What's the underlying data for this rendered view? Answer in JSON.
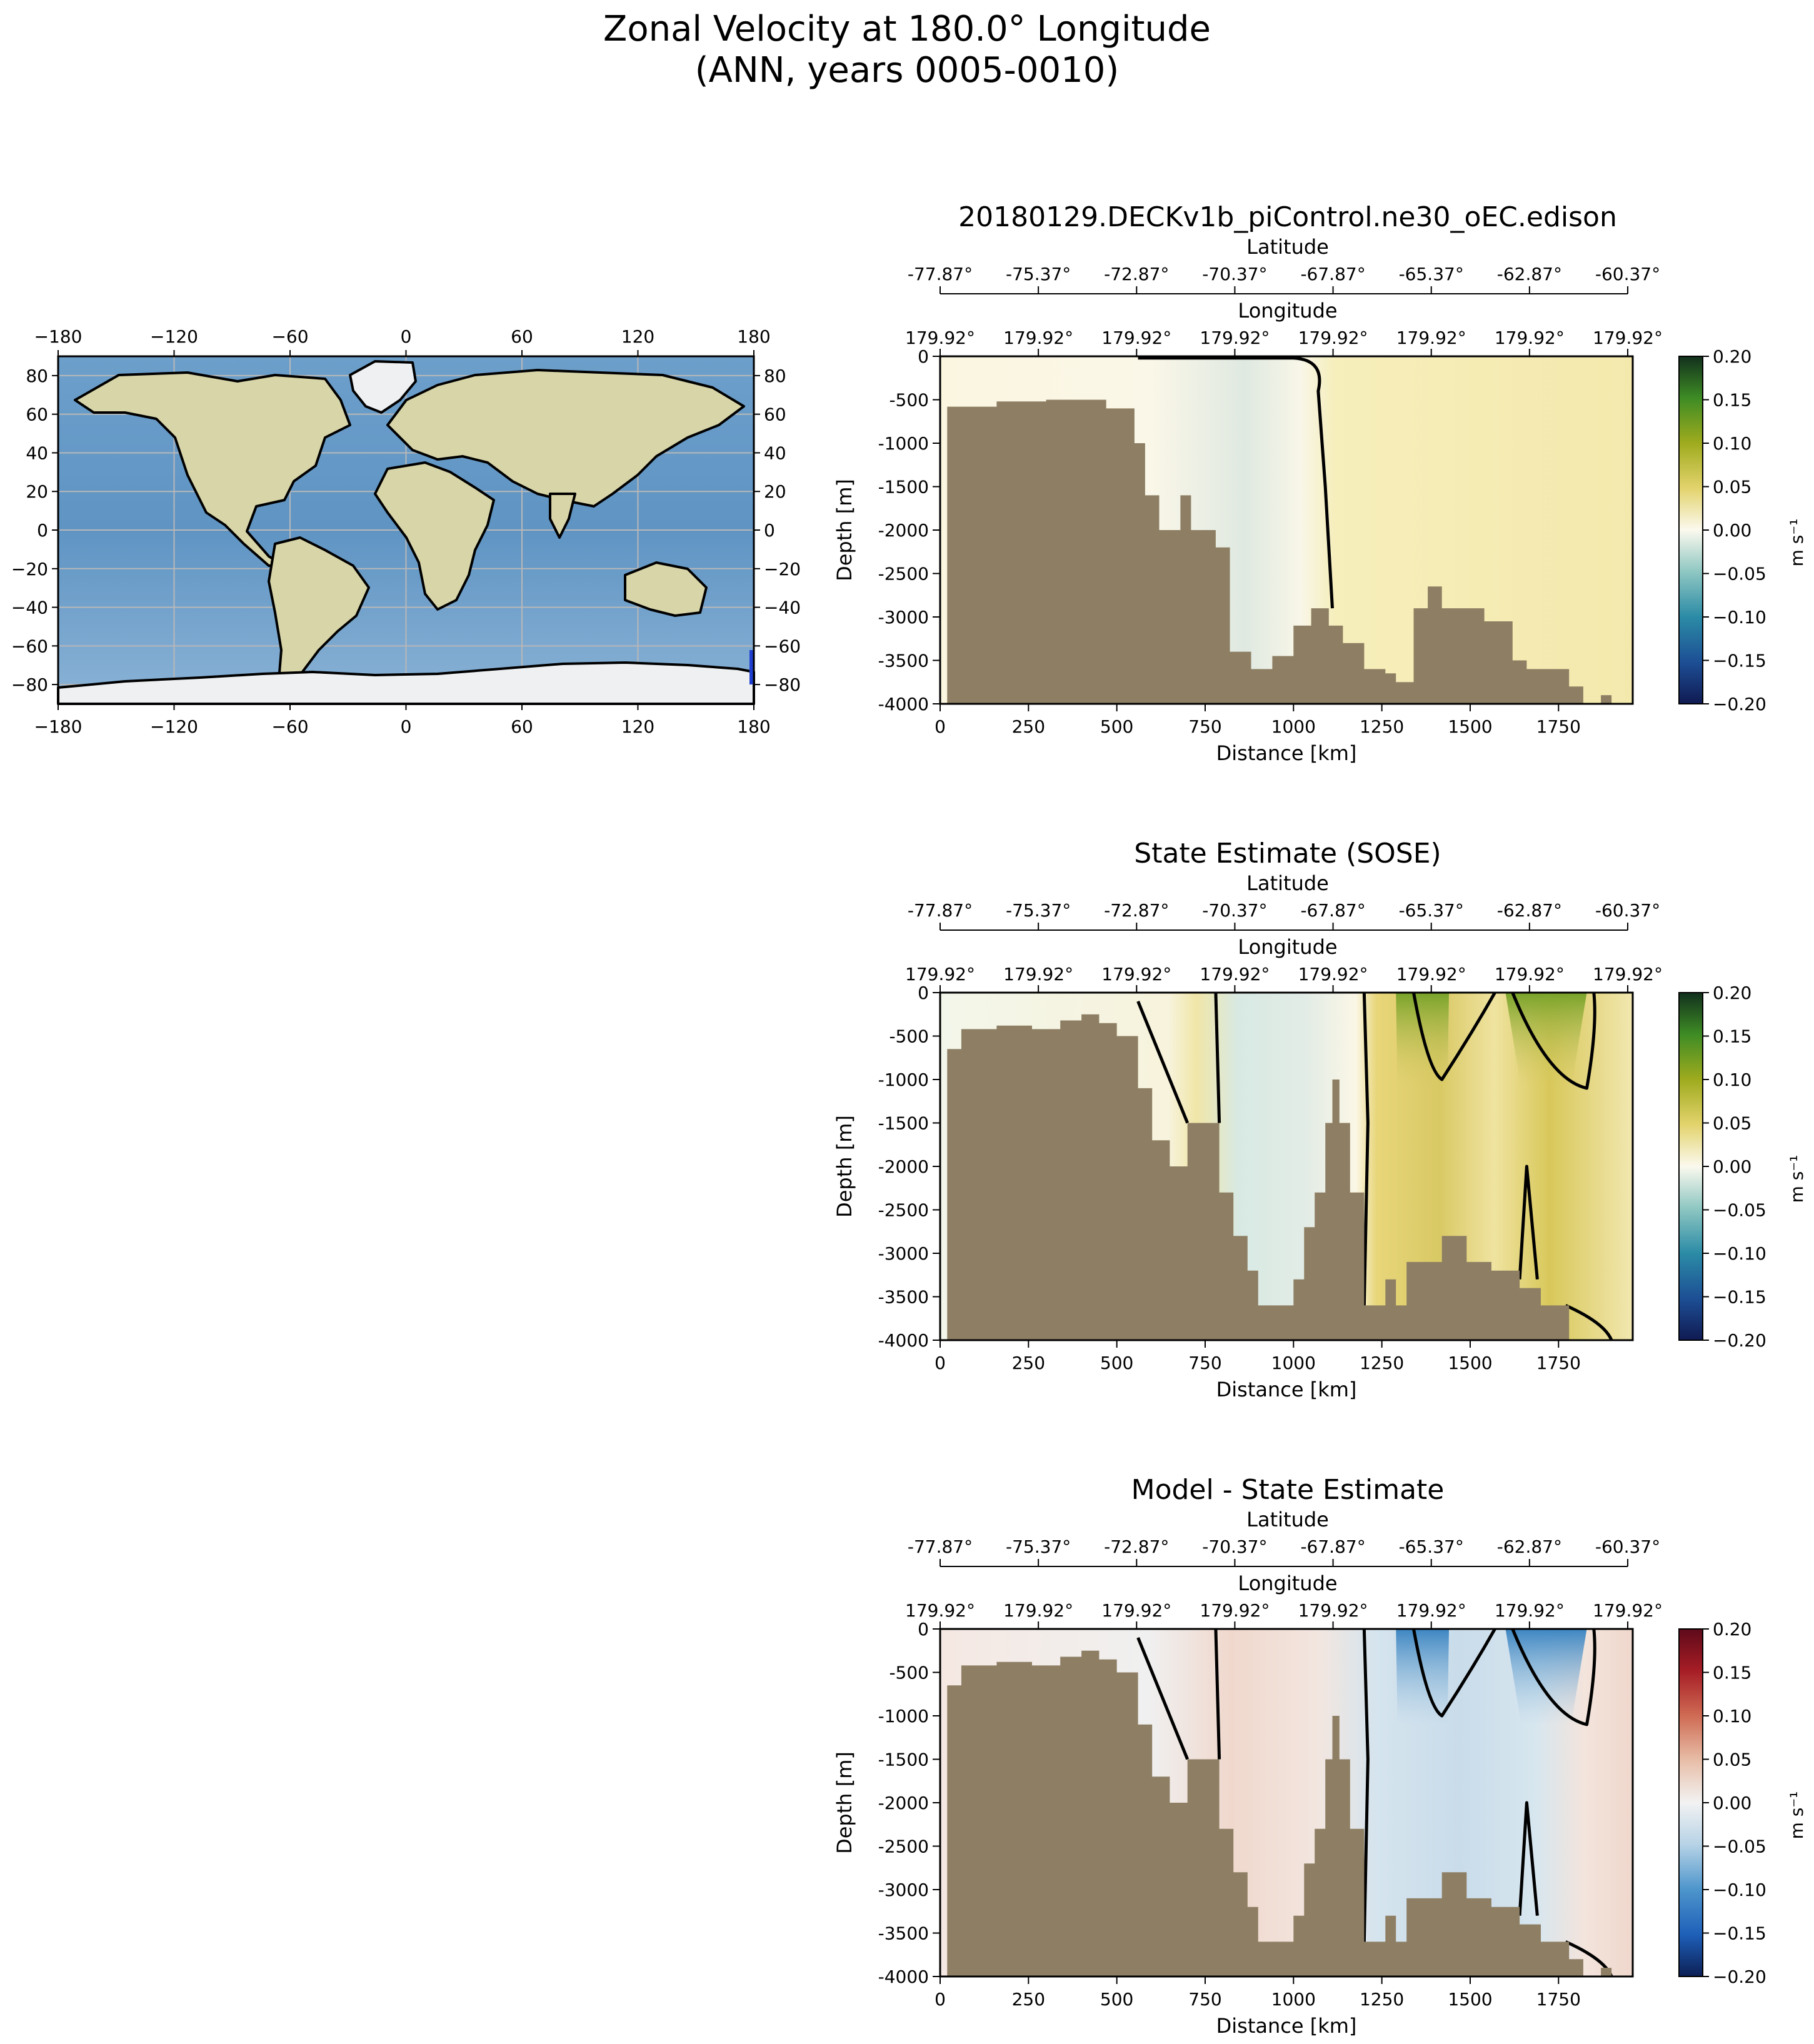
{
  "figure": {
    "title_line1": "Zonal Velocity at 180.0° Longitude",
    "title_line2": "(ANN, years 0005-0010)"
  },
  "map": {
    "x_ticks": [
      "−180",
      "−120",
      "−60",
      "0",
      "60",
      "120",
      "180"
    ],
    "y_ticks": [
      "80",
      "60",
      "40",
      "20",
      "0",
      "−20",
      "−40",
      "−60",
      "−80"
    ],
    "xlim": [
      -180,
      180
    ],
    "ylim": [
      -90,
      90
    ],
    "transect": {
      "longitude": 180,
      "lat_range": [
        -77.87,
        -60.37
      ],
      "color": "#1f3fd0"
    }
  },
  "chart_data": [
    {
      "type": "heatmap",
      "title": "20180129.DECKv1b_piControl.ne30_oEC.edison",
      "top_axis1_label": "Latitude",
      "top_axis1_ticks": [
        "-77.87°",
        "-75.37°",
        "-72.87°",
        "-70.37°",
        "-67.87°",
        "-65.37°",
        "-62.87°",
        "-60.37°"
      ],
      "top_axis2_label": "Longitude",
      "top_axis2_ticks": [
        "179.92°",
        "179.92°",
        "179.92°",
        "179.92°",
        "179.92°",
        "179.92°",
        "179.92°",
        "179.92°"
      ],
      "xlabel": "Distance [km]",
      "ylabel": "Depth [m]",
      "x_ticks": [
        "0",
        "250",
        "500",
        "750",
        "1000",
        "1250",
        "1500",
        "1750"
      ],
      "y_ticks": [
        "0",
        "-500",
        "-1000",
        "-1500",
        "-2000",
        "-2500",
        "-3000",
        "-3500",
        "-4000"
      ],
      "xlim": [
        0,
        1960
      ],
      "ylim": [
        -4000,
        0
      ],
      "colorbar_label": "m s⁻¹",
      "colorbar_ticks": [
        "0.20",
        "0.15",
        "0.10",
        "0.05",
        "0.00",
        "−0.05",
        "−0.10",
        "−0.15",
        "−0.20"
      ],
      "colorbar_range": [
        -0.2,
        0.2
      ],
      "colormap": "BrBG-like (green positive, blue negative)",
      "bathymetry": [
        [
          0,
          -4000
        ],
        [
          20,
          -4000
        ],
        [
          20,
          -580
        ],
        [
          160,
          -580
        ],
        [
          160,
          -520
        ],
        [
          300,
          -520
        ],
        [
          300,
          -500
        ],
        [
          470,
          -500
        ],
        [
          470,
          -600
        ],
        [
          550,
          -600
        ],
        [
          550,
          -1000
        ],
        [
          580,
          -1000
        ],
        [
          580,
          -1600
        ],
        [
          620,
          -1600
        ],
        [
          620,
          -2000
        ],
        [
          680,
          -2000
        ],
        [
          680,
          -1600
        ],
        [
          710,
          -1600
        ],
        [
          710,
          -2000
        ],
        [
          780,
          -2000
        ],
        [
          780,
          -2200
        ],
        [
          820,
          -2200
        ],
        [
          820,
          -3400
        ],
        [
          880,
          -3400
        ],
        [
          880,
          -3600
        ],
        [
          940,
          -3600
        ],
        [
          940,
          -3450
        ],
        [
          1000,
          -3450
        ],
        [
          1000,
          -3100
        ],
        [
          1050,
          -3100
        ],
        [
          1050,
          -2900
        ],
        [
          1100,
          -2900
        ],
        [
          1100,
          -3100
        ],
        [
          1140,
          -3100
        ],
        [
          1140,
          -3300
        ],
        [
          1200,
          -3300
        ],
        [
          1200,
          -3600
        ],
        [
          1260,
          -3600
        ],
        [
          1260,
          -3650
        ],
        [
          1290,
          -3650
        ],
        [
          1290,
          -3750
        ],
        [
          1340,
          -3750
        ],
        [
          1340,
          -2900
        ],
        [
          1380,
          -2900
        ],
        [
          1380,
          -2650
        ],
        [
          1420,
          -2650
        ],
        [
          1420,
          -2900
        ],
        [
          1540,
          -2900
        ],
        [
          1540,
          -3050
        ],
        [
          1620,
          -3050
        ],
        [
          1620,
          -3500
        ],
        [
          1660,
          -3500
        ],
        [
          1660,
          -3600
        ],
        [
          1780,
          -3600
        ],
        [
          1780,
          -3800
        ],
        [
          1820,
          -3800
        ],
        [
          1820,
          -4000
        ],
        [
          1870,
          -4000
        ],
        [
          1870,
          -3900
        ],
        [
          1900,
          -3900
        ],
        [
          1900,
          -4000
        ],
        [
          1960,
          -4000
        ]
      ],
      "zero_contour_km": 1110
    },
    {
      "type": "heatmap",
      "title": "State Estimate (SOSE)",
      "top_axis1_label": "Latitude",
      "top_axis1_ticks": [
        "-77.87°",
        "-75.37°",
        "-72.87°",
        "-70.37°",
        "-67.87°",
        "-65.37°",
        "-62.87°",
        "-60.37°"
      ],
      "top_axis2_label": "Longitude",
      "top_axis2_ticks": [
        "179.92°",
        "179.92°",
        "179.92°",
        "179.92°",
        "179.92°",
        "179.92°",
        "179.92°",
        "179.92°"
      ],
      "xlabel": "Distance [km]",
      "ylabel": "Depth [m]",
      "x_ticks": [
        "0",
        "250",
        "500",
        "750",
        "1000",
        "1250",
        "1500",
        "1750"
      ],
      "y_ticks": [
        "0",
        "-500",
        "-1000",
        "-1500",
        "-2000",
        "-2500",
        "-3000",
        "-3500",
        "-4000"
      ],
      "xlim": [
        0,
        1960
      ],
      "ylim": [
        -4000,
        0
      ],
      "colorbar_label": "m s⁻¹",
      "colorbar_ticks": [
        "0.20",
        "0.15",
        "0.10",
        "0.05",
        "0.00",
        "−0.05",
        "−0.10",
        "−0.15",
        "−0.20"
      ],
      "colorbar_range": [
        -0.2,
        0.2
      ],
      "colormap": "BrBG-like (green positive, blue negative)",
      "bathymetry": [
        [
          0,
          -4000
        ],
        [
          20,
          -4000
        ],
        [
          20,
          -650
        ],
        [
          60,
          -650
        ],
        [
          60,
          -420
        ],
        [
          160,
          -420
        ],
        [
          160,
          -380
        ],
        [
          260,
          -380
        ],
        [
          260,
          -420
        ],
        [
          340,
          -420
        ],
        [
          340,
          -320
        ],
        [
          400,
          -320
        ],
        [
          400,
          -250
        ],
        [
          450,
          -250
        ],
        [
          450,
          -350
        ],
        [
          500,
          -350
        ],
        [
          500,
          -500
        ],
        [
          560,
          -500
        ],
        [
          560,
          -1100
        ],
        [
          600,
          -1100
        ],
        [
          600,
          -1700
        ],
        [
          650,
          -1700
        ],
        [
          650,
          -2000
        ],
        [
          700,
          -2000
        ],
        [
          700,
          -1500
        ],
        [
          790,
          -1500
        ],
        [
          790,
          -2300
        ],
        [
          830,
          -2300
        ],
        [
          830,
          -2800
        ],
        [
          870,
          -2800
        ],
        [
          870,
          -3200
        ],
        [
          900,
          -3200
        ],
        [
          900,
          -3600
        ],
        [
          1000,
          -3600
        ],
        [
          1000,
          -3300
        ],
        [
          1030,
          -3300
        ],
        [
          1030,
          -2700
        ],
        [
          1060,
          -2700
        ],
        [
          1060,
          -2300
        ],
        [
          1090,
          -2300
        ],
        [
          1090,
          -1500
        ],
        [
          1110,
          -1500
        ],
        [
          1110,
          -1000
        ],
        [
          1130,
          -1000
        ],
        [
          1130,
          -1500
        ],
        [
          1160,
          -1500
        ],
        [
          1160,
          -2300
        ],
        [
          1200,
          -2300
        ],
        [
          1200,
          -3600
        ],
        [
          1260,
          -3600
        ],
        [
          1260,
          -3300
        ],
        [
          1290,
          -3300
        ],
        [
          1290,
          -3600
        ],
        [
          1320,
          -3600
        ],
        [
          1320,
          -3100
        ],
        [
          1420,
          -3100
        ],
        [
          1420,
          -2800
        ],
        [
          1490,
          -2800
        ],
        [
          1490,
          -3100
        ],
        [
          1560,
          -3100
        ],
        [
          1560,
          -3200
        ],
        [
          1640,
          -3200
        ],
        [
          1640,
          -3400
        ],
        [
          1700,
          -3400
        ],
        [
          1700,
          -3600
        ],
        [
          1780,
          -3600
        ],
        [
          1780,
          -4000
        ],
        [
          1960,
          -4000
        ]
      ],
      "zero_contour_km": 1200
    },
    {
      "type": "heatmap",
      "title": "Model - State Estimate",
      "top_axis1_label": "Latitude",
      "top_axis1_ticks": [
        "-77.87°",
        "-75.37°",
        "-72.87°",
        "-70.37°",
        "-67.87°",
        "-65.37°",
        "-62.87°",
        "-60.37°"
      ],
      "top_axis2_label": "Longitude",
      "top_axis2_ticks": [
        "179.92°",
        "179.92°",
        "179.92°",
        "179.92°",
        "179.92°",
        "179.92°",
        "179.92°",
        "179.92°"
      ],
      "xlabel": "Distance [km]",
      "ylabel": "Depth [m]",
      "x_ticks": [
        "0",
        "250",
        "500",
        "750",
        "1000",
        "1250",
        "1500",
        "1750"
      ],
      "y_ticks": [
        "0",
        "-500",
        "-1000",
        "-1500",
        "-2000",
        "-2500",
        "-3000",
        "-3500",
        "-4000"
      ],
      "xlim": [
        0,
        1960
      ],
      "ylim": [
        -4000,
        0
      ],
      "colorbar_label": "m s⁻¹",
      "colorbar_ticks": [
        "0.20",
        "0.15",
        "0.10",
        "0.05",
        "0.00",
        "−0.05",
        "−0.10",
        "−0.15",
        "−0.20"
      ],
      "colorbar_range": [
        -0.2,
        0.2
      ],
      "colormap": "RdBu_r-like (red positive, blue negative)",
      "bathymetry": [
        [
          0,
          -4000
        ],
        [
          20,
          -4000
        ],
        [
          20,
          -650
        ],
        [
          60,
          -650
        ],
        [
          60,
          -420
        ],
        [
          160,
          -420
        ],
        [
          160,
          -380
        ],
        [
          260,
          -380
        ],
        [
          260,
          -420
        ],
        [
          340,
          -420
        ],
        [
          340,
          -320
        ],
        [
          400,
          -320
        ],
        [
          400,
          -250
        ],
        [
          450,
          -250
        ],
        [
          450,
          -350
        ],
        [
          500,
          -350
        ],
        [
          500,
          -500
        ],
        [
          560,
          -500
        ],
        [
          560,
          -1100
        ],
        [
          600,
          -1100
        ],
        [
          600,
          -1700
        ],
        [
          650,
          -1700
        ],
        [
          650,
          -2000
        ],
        [
          700,
          -2000
        ],
        [
          700,
          -1500
        ],
        [
          790,
          -1500
        ],
        [
          790,
          -2300
        ],
        [
          830,
          -2300
        ],
        [
          830,
          -2800
        ],
        [
          870,
          -2800
        ],
        [
          870,
          -3200
        ],
        [
          900,
          -3200
        ],
        [
          900,
          -3600
        ],
        [
          1000,
          -3600
        ],
        [
          1000,
          -3300
        ],
        [
          1030,
          -3300
        ],
        [
          1030,
          -2700
        ],
        [
          1060,
          -2700
        ],
        [
          1060,
          -2300
        ],
        [
          1090,
          -2300
        ],
        [
          1090,
          -1500
        ],
        [
          1110,
          -1500
        ],
        [
          1110,
          -1000
        ],
        [
          1130,
          -1000
        ],
        [
          1130,
          -1500
        ],
        [
          1160,
          -1500
        ],
        [
          1160,
          -2300
        ],
        [
          1200,
          -2300
        ],
        [
          1200,
          -3600
        ],
        [
          1260,
          -3600
        ],
        [
          1260,
          -3300
        ],
        [
          1290,
          -3300
        ],
        [
          1290,
          -3600
        ],
        [
          1320,
          -3600
        ],
        [
          1320,
          -3100
        ],
        [
          1420,
          -3100
        ],
        [
          1420,
          -2800
        ],
        [
          1490,
          -2800
        ],
        [
          1490,
          -3100
        ],
        [
          1560,
          -3100
        ],
        [
          1560,
          -3200
        ],
        [
          1640,
          -3200
        ],
        [
          1640,
          -3400
        ],
        [
          1700,
          -3400
        ],
        [
          1700,
          -3600
        ],
        [
          1780,
          -3600
        ],
        [
          1780,
          -3800
        ],
        [
          1820,
          -3800
        ],
        [
          1820,
          -4000
        ],
        [
          1870,
          -4000
        ],
        [
          1870,
          -3900
        ],
        [
          1900,
          -3900
        ],
        [
          1900,
          -4000
        ],
        [
          1960,
          -4000
        ]
      ],
      "zero_contour_km": 1200
    }
  ]
}
